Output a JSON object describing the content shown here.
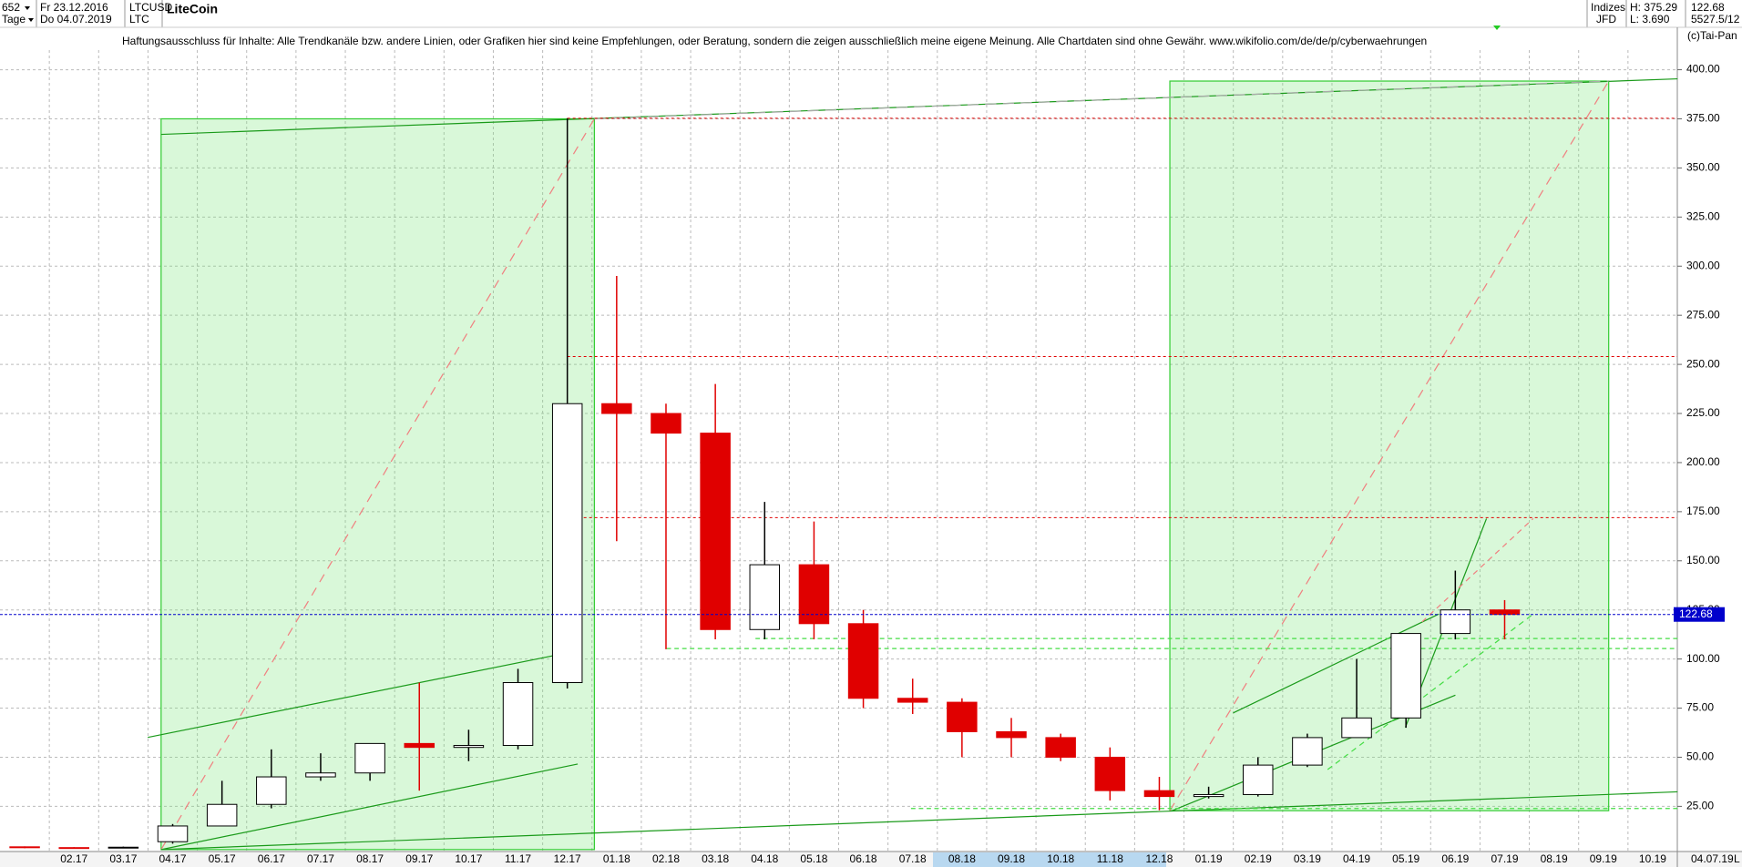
{
  "header": {
    "count": "652",
    "period": "Tage",
    "start_date": "Fr 23.12.2016",
    "end_date": "Do 04.07.2019",
    "symbol": "LTCUSD",
    "short_name": "LTC",
    "title": "LiteCoin",
    "market": "Indizes",
    "broker": "JFD",
    "high": "H: 375.29",
    "low": "L: 3.690",
    "last": "122.68",
    "ratio": "5527.5/12",
    "copyright": "(c)Tai-Pan",
    "disclaimer": "Haftungsausschluss für Inhalte: Alle Trendkanäle bzw. andere Linien, oder Grafiken hier sind keine Empfehlungen, oder Beratung, sondern die zeigen ausschließlich meine eigene Meinung. Alle Chartdaten sind ohne Gewähr.  www.wikifolio.com/de/de/p/cyberwaehrungen",
    "last_date": "04.07.19",
    "scale_mode": "L"
  },
  "chart_data": {
    "type": "candlestick",
    "categories": [
      null,
      "02.17",
      "03.17",
      "04.17",
      "05.17",
      "06.17",
      "07.17",
      "08.17",
      "09.17",
      "10.17",
      "11.17",
      "12.17",
      "01.18",
      "02.18",
      "03.18",
      "04.18",
      "05.18",
      "06.18",
      "07.18",
      "08.18",
      "09.18",
      "10.18",
      "11.18",
      "12.18",
      "01.19",
      "02.19",
      "03.19",
      "04.19",
      "05.19",
      "06.19",
      "07.19",
      "08.19",
      "09.19",
      "10.19"
    ],
    "open": [
      4.4,
      4.0,
      3.8,
      7,
      15,
      26,
      40,
      42,
      57,
      55,
      56,
      88,
      230,
      225,
      215,
      115,
      148,
      118,
      80,
      78,
      63,
      60,
      50,
      33,
      30,
      31,
      46,
      60,
      70,
      113,
      125,
      null,
      null,
      null
    ],
    "high": [
      4.6,
      4.2,
      4.5,
      16,
      38,
      54,
      52,
      57,
      88,
      64,
      95,
      375.29,
      295,
      230,
      240,
      180,
      170,
      125,
      90,
      80,
      70,
      62,
      55,
      40,
      35,
      50,
      62,
      100,
      113,
      145,
      130,
      null,
      null,
      null
    ],
    "low": [
      3.69,
      3.7,
      3.7,
      6,
      15,
      24,
      38,
      38,
      33,
      48,
      54,
      85,
      160,
      105,
      110,
      110,
      110,
      75,
      72,
      50,
      50,
      48,
      28,
      23,
      29,
      30,
      45,
      60,
      65,
      110,
      110,
      null,
      null,
      null
    ],
    "close": [
      4.0,
      3.8,
      4.2,
      15,
      26,
      40,
      42,
      57,
      55,
      56,
      88,
      230,
      225,
      215,
      115,
      148,
      118,
      80,
      78,
      63,
      60,
      50,
      33,
      30,
      31,
      46,
      60,
      70,
      113,
      125,
      122.68,
      null,
      null,
      null
    ],
    "up_color": "#000000",
    "down_color": "#e00000",
    "ylim": [
      2,
      410
    ],
    "yticks": [
      {
        "value": 25,
        "label": "25.00"
      },
      {
        "value": 50,
        "label": "50.00"
      },
      {
        "value": 75,
        "label": "75.00"
      },
      {
        "value": 100,
        "label": "100.00"
      },
      {
        "value": 125,
        "label": "125.00"
      },
      {
        "value": 150,
        "label": "150.00"
      },
      {
        "value": 175,
        "label": "175.00"
      },
      {
        "value": 200,
        "label": "200.00"
      },
      {
        "value": 225,
        "label": "225.00"
      },
      {
        "value": 250,
        "label": "250.00"
      },
      {
        "value": 275,
        "label": "275.00"
      },
      {
        "value": 300,
        "label": "300.00"
      },
      {
        "value": 325,
        "label": "325.00"
      },
      {
        "value": 350,
        "label": "350.00"
      },
      {
        "value": 375,
        "label": "375.00"
      },
      {
        "value": 400,
        "label": "400.00"
      }
    ],
    "grid": true,
    "last_price": 122.68,
    "last_price_color": "#0000cc",
    "ref_lines": [
      375.29,
      254,
      172
    ],
    "ref_line_color": "#e00000"
  }
}
